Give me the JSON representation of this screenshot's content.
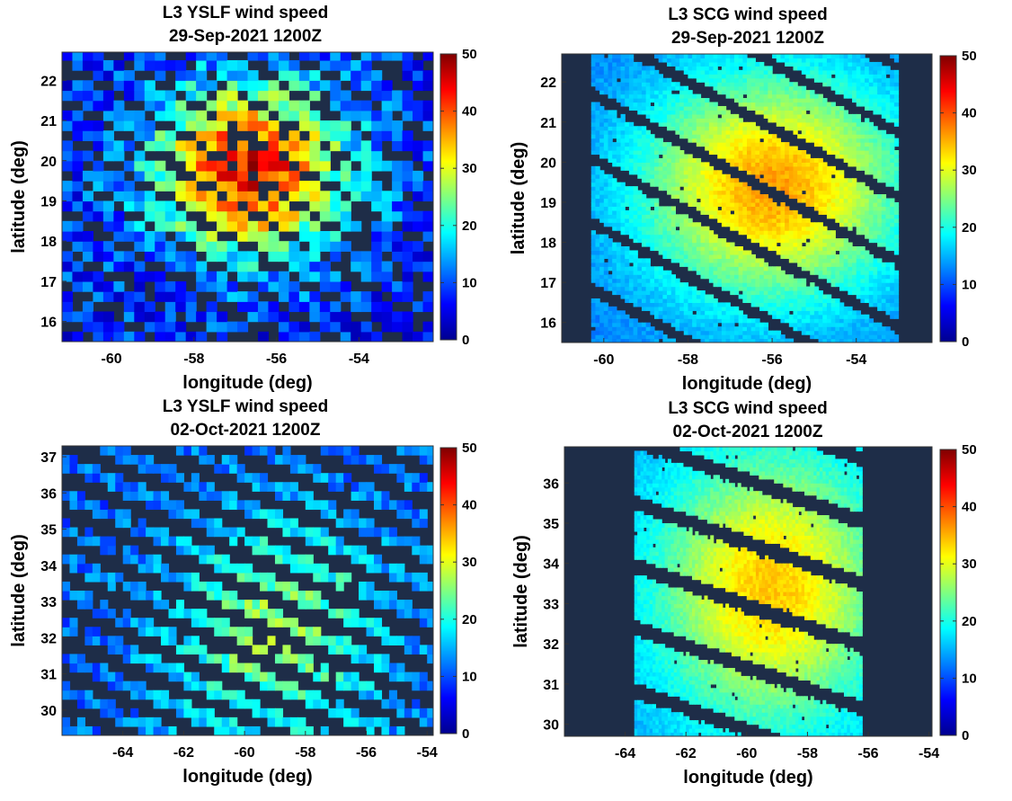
{
  "colormap": {
    "name": "jet",
    "stops": [
      "#00008f",
      "#0000ff",
      "#0080ff",
      "#00ffff",
      "#80ff80",
      "#ffff00",
      "#ff8000",
      "#ff0000",
      "#800000"
    ],
    "land_ocean_background": "#1e2d48"
  },
  "chart_data": [
    {
      "type": "heatmap",
      "title": "L3 YSLF wind speed",
      "subtitle": "29-Sep-2021 1200Z",
      "xlabel": "longitude (deg)",
      "ylabel": "latitude (deg)",
      "xlim": [
        -61.2,
        -52.2
      ],
      "ylim": [
        15.5,
        22.7
      ],
      "xticks": [
        -60,
        -58,
        -56,
        -54
      ],
      "yticks": [
        16,
        17,
        18,
        19,
        20,
        21,
        22
      ],
      "colorbar": {
        "range": [
          0,
          50
        ],
        "ticks": [
          0,
          10,
          20,
          30,
          40,
          50
        ]
      },
      "grid_resolution_deg": 0.25,
      "swath": {
        "angle_deg": -32,
        "spacing_deg": 0.78,
        "width_deg": 0.58
      },
      "coverage": "full",
      "storm_center": [
        -56.6,
        19.8
      ],
      "peak_wind": 45,
      "peak_radius_deg": 1.6,
      "background_wind": 8,
      "noise": 6
    },
    {
      "type": "heatmap",
      "title": "L3 SCG wind speed",
      "subtitle": "29-Sep-2021 1200Z",
      "xlabel": "longitude (deg)",
      "ylabel": "latitude (deg)",
      "xlim": [
        -61.0,
        -52.2
      ],
      "ylim": [
        15.5,
        22.7
      ],
      "xticks": [
        -60,
        -58,
        -56,
        -54
      ],
      "yticks": [
        16,
        17,
        18,
        19,
        20,
        21,
        22
      ],
      "colorbar": {
        "range": [
          0,
          50
        ],
        "ticks": [
          0,
          10,
          20,
          30,
          40,
          50
        ]
      },
      "grid_resolution_deg": 0.1,
      "swath": {
        "angle_deg": -30,
        "spacing_deg": 1.4,
        "width_deg": 1.12
      },
      "coverage": "lon_band",
      "coverage_lon": [
        -60.3,
        -53.0
      ],
      "storm_center": [
        -56.0,
        19.4
      ],
      "peak_wind": 36,
      "peak_radius_deg": 2.2,
      "background_wind": 12,
      "noise": 1.5
    },
    {
      "type": "heatmap",
      "title": "L3 YSLF wind speed",
      "subtitle": "02-Oct-2021 1200Z",
      "xlabel": "longitude (deg)",
      "ylabel": "latitude (deg)",
      "xlim": [
        -66.0,
        -53.8
      ],
      "ylim": [
        29.3,
        37.3
      ],
      "xticks": [
        -64,
        -62,
        -60,
        -58,
        -56,
        -54
      ],
      "yticks": [
        30,
        31,
        32,
        33,
        34,
        35,
        36,
        37
      ],
      "colorbar": {
        "range": [
          0,
          50
        ],
        "ticks": [
          0,
          10,
          20,
          30,
          40,
          50
        ]
      },
      "grid_resolution_deg": 0.25,
      "swath": {
        "angle_deg": -20,
        "spacing_deg": 0.85,
        "width_deg": 0.42
      },
      "coverage": "full",
      "storm_center": [
        -59.0,
        32.2
      ],
      "peak_wind": 26,
      "peak_radius_deg": 2.5,
      "background_wind": 11,
      "noise": 4
    },
    {
      "type": "heatmap",
      "title": "L3 SCG wind speed",
      "subtitle": "02-Oct-2021 1200Z",
      "xlabel": "longitude (deg)",
      "ylabel": "latitude (deg)",
      "xlim": [
        -66.0,
        -53.9
      ],
      "ylim": [
        29.7,
        36.9
      ],
      "xticks": [
        -64,
        -62,
        -60,
        -58,
        -56,
        -54
      ],
      "yticks": [
        30,
        31,
        32,
        33,
        34,
        35,
        36
      ],
      "colorbar": {
        "range": [
          0,
          50
        ],
        "ticks": [
          0,
          10,
          20,
          30,
          40,
          50
        ]
      },
      "grid_resolution_deg": 0.1,
      "swath": {
        "angle_deg": -15,
        "spacing_deg": 1.5,
        "width_deg": 1.12
      },
      "coverage": "lon_band",
      "coverage_lon": [
        -63.8,
        -56.2
      ],
      "storm_center": [
        -59.2,
        33.4
      ],
      "peak_wind": 34,
      "peak_radius_deg": 2.6,
      "background_wind": 14,
      "noise": 1.5
    }
  ]
}
